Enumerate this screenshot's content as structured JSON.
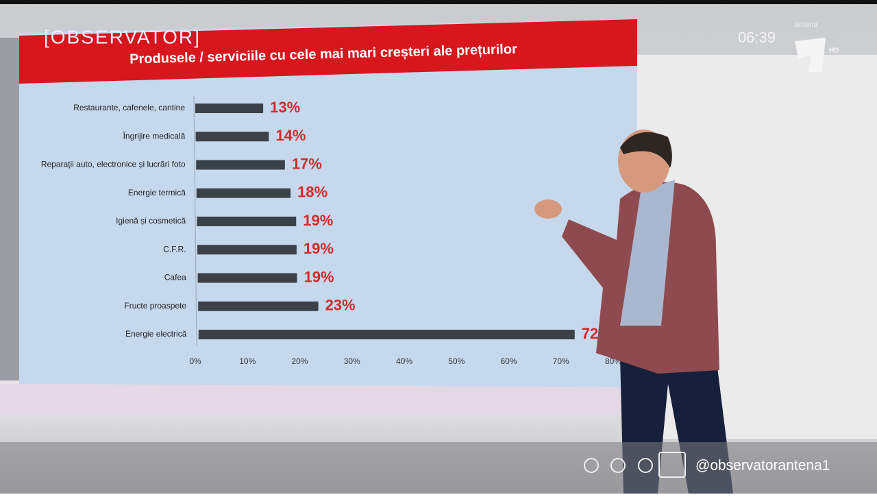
{
  "chart_data": {
    "type": "bar",
    "orientation": "horizontal",
    "title": "Produsele / serviciile cu cele mai mari creșteri ale prețurilor",
    "categories": [
      "Restaurante, cafenele, cantine",
      "Îngrijire medicală",
      "Reparații auto, electronice și lucrări foto",
      "Energie termică",
      "Igienă și cosmetică",
      "C.F.R.",
      "Cafea",
      "Fructe proaspete",
      "Energie electrică"
    ],
    "values": [
      13,
      14,
      17,
      18,
      19,
      19,
      19,
      23,
      72
    ],
    "value_labels": [
      "13%",
      "14%",
      "17%",
      "18%",
      "19%",
      "19%",
      "19%",
      "23%",
      "72%"
    ],
    "color": "#3b4149",
    "label_color": "#d42a2c",
    "xlim": [
      0,
      80
    ],
    "xticks": [
      {
        "value": 0,
        "label": "0%"
      },
      {
        "value": 10,
        "label": "10%"
      },
      {
        "value": 20,
        "label": "20%"
      },
      {
        "value": 30,
        "label": "30%"
      },
      {
        "value": 40,
        "label": "40%"
      },
      {
        "value": 50,
        "label": "50%"
      },
      {
        "value": 60,
        "label": "60%"
      },
      {
        "value": 70,
        "label": "70%"
      },
      {
        "value": 80,
        "label": "80%"
      }
    ],
    "grid": false
  },
  "overlay": {
    "logo": "[OBSERVATOR]",
    "clock": "06:39",
    "channel": "antena",
    "hd": "HD",
    "handle": "@observatorantena1"
  }
}
